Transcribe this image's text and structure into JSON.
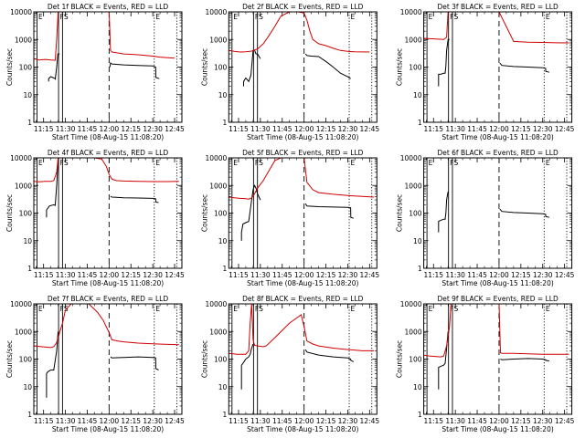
{
  "layout": {
    "rows": 3,
    "cols": 3
  },
  "colors": {
    "events": "#000000",
    "lld": "#d00000",
    "axes": "#000000"
  },
  "shared": {
    "xlabel": "Start Time (08-Aug-15 11:08:20)",
    "ylabel": "Counts/sec",
    "x_ticks": [
      "11:15",
      "11:30",
      "11:45",
      "12:00",
      "12:15",
      "12:30",
      "12:45"
    ],
    "x_tick_minutes": [
      15,
      30,
      45,
      60,
      75,
      90,
      105
    ],
    "xlim_minutes": [
      8.3,
      110
    ],
    "y_scale": "log",
    "ylim": [
      1,
      10000
    ],
    "y_ticks": [
      "1",
      "10",
      "100",
      "1000",
      "10000"
    ],
    "y_tick_values": [
      1,
      10,
      100,
      1000,
      10000
    ],
    "markers": [
      {
        "label": "E",
        "minute": 10.5,
        "style": "solid"
      },
      {
        "label": "F",
        "minute": 25.3,
        "style": "solid"
      },
      {
        "label": "S",
        "minute": 28.0,
        "style": "solid"
      },
      {
        "label": "",
        "minute": 60.0,
        "style": "dashed"
      },
      {
        "label": "E",
        "minute": 91.0,
        "style": "dotted"
      },
      {
        "label": "",
        "minute": 106.5,
        "style": "dotted"
      }
    ]
  },
  "chart_data": [
    {
      "type": "line",
      "title": "Det 1f BLACK = Events, RED = LLD",
      "series": [
        {
          "name": "Events",
          "color": "#000000",
          "x": [
            8.3,
            9,
            10.4,
            10.4,
            18.5,
            18.5,
            20,
            23,
            23,
            24,
            24.8,
            26,
            26.3,
            27,
            28,
            60,
            60.5,
            61,
            62,
            70,
            80,
            90,
            92,
            92.1,
            94.5
          ],
          "y": [
            null,
            null,
            null,
            null,
            30,
            38,
            45,
            38,
            35,
            100,
            300,
            300,
            null,
            null,
            null,
            null,
            100,
            140,
            130,
            120,
            115,
            110,
            100,
            42,
            38
          ]
        },
        {
          "name": "LLD",
          "color": "#d00000",
          "x": [
            8.3,
            12,
            16,
            20,
            23,
            24,
            25,
            26,
            27,
            28,
            60,
            61,
            62,
            70,
            80,
            90,
            95,
            105
          ],
          "y": [
            200,
            180,
            190,
            180,
            175,
            1000,
            10000,
            10000,
            10000,
            10000,
            10000,
            400,
            350,
            300,
            280,
            250,
            230,
            210
          ]
        }
      ]
    },
    {
      "type": "line",
      "title": "Det 2f BLACK = Events, RED = LLD",
      "series": [
        {
          "name": "Events",
          "color": "#000000",
          "x": [
            18.5,
            18.5,
            20,
            22,
            23.5,
            24,
            25,
            26,
            27,
            28,
            30,
            31,
            60,
            61,
            62,
            65,
            70,
            75,
            80,
            85,
            90,
            92
          ],
          "y": [
            20,
            30,
            40,
            30,
            50,
            100,
            400,
            400,
            300,
            300,
            200,
            null,
            null,
            300,
            260,
            250,
            240,
            160,
            100,
            60,
            45,
            38
          ]
        },
        {
          "name": "LLD",
          "color": "#d00000",
          "x": [
            8.3,
            12,
            16,
            20,
            24,
            28,
            32,
            36,
            40,
            44,
            50,
            56,
            60,
            62,
            64,
            66,
            70,
            75,
            80,
            85,
            90,
            95,
            105
          ],
          "y": [
            400,
            370,
            350,
            360,
            380,
            450,
            700,
            1400,
            3000,
            7000,
            10000,
            10000,
            9000,
            5000,
            2000,
            1000,
            700,
            600,
            480,
            400,
            370,
            360,
            350
          ]
        }
      ]
    },
    {
      "type": "line",
      "title": "Det 3f BLACK = Events, RED = LLD",
      "series": [
        {
          "name": "Events",
          "color": "#000000",
          "x": [
            18.5,
            18.5,
            20,
            22,
            23,
            23.5,
            24,
            25,
            26,
            27,
            60,
            60.5,
            62,
            70,
            80,
            90,
            92,
            92.1,
            94.5
          ],
          "y": [
            20,
            55,
            55,
            60,
            60,
            110,
            400,
            1000,
            1000,
            null,
            null,
            140,
            115,
            105,
            100,
            95,
            90,
            70,
            65
          ]
        },
        {
          "name": "LLD",
          "color": "#d00000",
          "x": [
            8.3,
            15,
            22,
            24,
            25,
            26,
            27,
            28,
            32,
            40,
            50,
            60,
            70,
            80,
            90,
            100,
            108
          ],
          "y": [
            1100,
            1050,
            1000,
            1200,
            10000,
            10000,
            10000,
            10000,
            10000,
            10000,
            10000,
            10000,
            850,
            800,
            780,
            760,
            750
          ]
        }
      ]
    },
    {
      "type": "line",
      "title": "Det 4f BLACK = Events, RED = LLD",
      "series": [
        {
          "name": "Events",
          "color": "#000000",
          "x": [
            17,
            17,
            19,
            22,
            23,
            24,
            25,
            26,
            60,
            61,
            62,
            70,
            80,
            90,
            92,
            92.1,
            94
          ],
          "y": [
            70,
            130,
            180,
            200,
            190,
            1000,
            10000,
            null,
            null,
            400,
            380,
            360,
            350,
            340,
            330,
            250,
            240
          ]
        },
        {
          "name": "LLD",
          "color": "#d00000",
          "x": [
            8.3,
            12,
            16,
            20,
            22,
            24,
            25,
            26,
            30,
            40,
            50,
            55,
            58,
            60,
            62,
            65,
            70,
            80,
            90,
            100,
            108
          ],
          "y": [
            1400,
            1350,
            1400,
            1400,
            1500,
            3000,
            10000,
            10000,
            10000,
            10000,
            10000,
            9000,
            5000,
            2500,
            1700,
            1500,
            1450,
            1400,
            1380,
            1380,
            1400
          ]
        }
      ]
    },
    {
      "type": "line",
      "title": "Det 5f BLACK = Events, RED = LLD",
      "series": [
        {
          "name": "Events",
          "color": "#000000",
          "x": [
            17,
            17,
            18,
            20,
            22,
            24,
            25,
            26,
            27,
            28,
            30,
            60,
            61,
            62,
            70,
            80,
            90,
            92,
            92.1,
            94
          ],
          "y": [
            10,
            20,
            40,
            45,
            50,
            300,
            700,
            1000,
            800,
            500,
            300,
            null,
            220,
            180,
            170,
            165,
            160,
            155,
            70,
            65
          ]
        },
        {
          "name": "LLD",
          "color": "#d00000",
          "x": [
            8.3,
            12,
            16,
            20,
            22,
            24,
            26,
            28,
            32,
            36,
            40,
            44,
            50,
            56,
            60,
            62,
            66,
            70,
            80,
            90,
            100,
            108
          ],
          "y": [
            380,
            360,
            340,
            330,
            320,
            350,
            500,
            800,
            1500,
            3500,
            8000,
            10000,
            10000,
            10000,
            10000,
            1300,
            700,
            550,
            480,
            430,
            400,
            380
          ]
        }
      ]
    },
    {
      "type": "line",
      "title": "Det 6f BLACK = Events, RED = LLD",
      "series": [
        {
          "name": "Events",
          "color": "#000000",
          "x": [
            18.5,
            18.5,
            20,
            22,
            23,
            23.5,
            24,
            25,
            26,
            60,
            60.5,
            62,
            70,
            80,
            90,
            92,
            92.1,
            94.5
          ],
          "y": [
            20,
            50,
            55,
            60,
            60,
            100,
            300,
            600,
            null,
            null,
            140,
            115,
            105,
            100,
            95,
            90,
            75,
            70
          ]
        },
        {
          "name": "LLD",
          "color": "#d00000",
          "x": [],
          "y": []
        }
      ]
    },
    {
      "type": "line",
      "title": "Det 7f BLACK = Events, RED = LLD",
      "series": [
        {
          "name": "Events",
          "color": "#000000",
          "x": [
            17,
            17,
            18,
            20,
            22,
            24,
            25,
            26,
            60,
            61,
            62,
            70,
            80,
            90,
            92,
            92.1,
            94
          ],
          "y": [
            4,
            30,
            35,
            40,
            40,
            200,
            1000,
            null,
            null,
            120,
            110,
            115,
            120,
            115,
            110,
            45,
            40
          ]
        },
        {
          "name": "LLD",
          "color": "#d00000",
          "x": [
            8.3,
            14,
            20,
            22,
            24,
            26,
            28,
            30,
            34,
            40,
            46,
            52,
            56,
            60,
            62,
            66,
            70,
            80,
            90,
            100,
            108
          ],
          "y": [
            300,
            280,
            260,
            280,
            400,
            900,
            2000,
            6000,
            10000,
            10000,
            10000,
            5000,
            2500,
            900,
            500,
            450,
            420,
            380,
            360,
            340,
            330
          ]
        }
      ]
    },
    {
      "type": "line",
      "title": "Det 8f BLACK = Events, RED = LLD",
      "series": [
        {
          "name": "Events",
          "color": "#000000",
          "x": [
            17,
            17,
            18,
            20,
            22,
            23,
            24,
            25,
            26,
            60,
            61,
            62,
            70,
            80,
            90,
            92,
            92.1,
            94
          ],
          "y": [
            8,
            60,
            70,
            100,
            120,
            150,
            250,
            350,
            null,
            null,
            220,
            180,
            140,
            120,
            110,
            100,
            90,
            80
          ]
        },
        {
          "name": "LLD",
          "color": "#d00000",
          "x": [
            8.3,
            14,
            20,
            22,
            23,
            24,
            25,
            26,
            28,
            30,
            32,
            34,
            40,
            50,
            58,
            60,
            62,
            66,
            70,
            80,
            90,
            100,
            108
          ],
          "y": [
            160,
            150,
            150,
            200,
            2000,
            10000,
            500,
            320,
            300,
            290,
            280,
            300,
            600,
            2000,
            4000,
            1500,
            450,
            350,
            300,
            250,
            220,
            200,
            200
          ]
        }
      ]
    },
    {
      "type": "line",
      "title": "Det 9f BLACK = Events, RED = LLD",
      "series": [
        {
          "name": "Events",
          "color": "#000000",
          "x": [
            18.5,
            18.5,
            20,
            22,
            23,
            24,
            25,
            26,
            60,
            61,
            62,
            70,
            80,
            90,
            92,
            92.1,
            94.5
          ],
          "y": [
            8,
            50,
            55,
            60,
            70,
            250,
            1000,
            null,
            null,
            100,
            95,
            100,
            105,
            100,
            95,
            90,
            85
          ]
        },
        {
          "name": "LLD",
          "color": "#d00000",
          "x": [
            8.3,
            12,
            16,
            20,
            22,
            24,
            26,
            27,
            28,
            30,
            34,
            40,
            50,
            58,
            60,
            61,
            62,
            70,
            80,
            90,
            100,
            108
          ],
          "y": [
            140,
            130,
            125,
            120,
            130,
            300,
            1500,
            10000,
            10000,
            10000,
            10000,
            10000,
            10000,
            10000,
            10000,
            170,
            160,
            160,
            155,
            150,
            150,
            150
          ]
        }
      ]
    }
  ]
}
